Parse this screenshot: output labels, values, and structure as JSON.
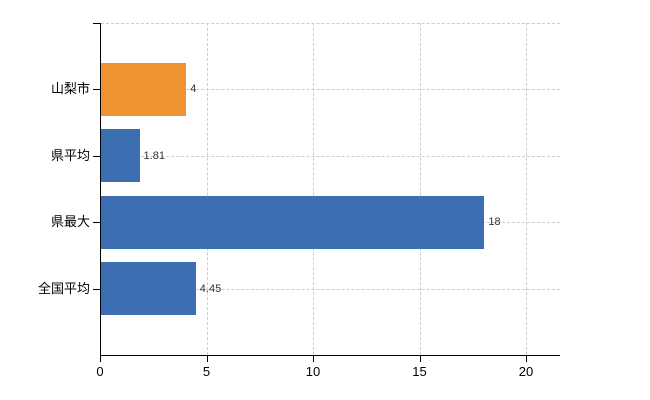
{
  "chart_data": {
    "type": "bar",
    "orientation": "horizontal",
    "categories": [
      "山梨市",
      "県平均",
      "県最大",
      "全国平均"
    ],
    "values": [
      4,
      1.81,
      18,
      4.45
    ],
    "value_labels": [
      "4",
      "1.81",
      "18",
      "4.45"
    ],
    "bar_colors": [
      "#ef9432",
      "#3c6eb2",
      "#3c6eb2",
      "#3c6eb2"
    ],
    "x_ticks": [
      0,
      5,
      10,
      15,
      20
    ],
    "x_tick_labels": [
      "0",
      "5",
      "10",
      "15",
      "20"
    ],
    "xlim": [
      0,
      21.6
    ],
    "legend": "none",
    "grid": {
      "vertical": true,
      "horizontal": true,
      "style": "dashed",
      "color": "#cccccc"
    },
    "colors": {
      "axis": "#000000",
      "value_label_text": "#333333",
      "category_label_text": "#000000",
      "background": "#ffffff"
    }
  }
}
